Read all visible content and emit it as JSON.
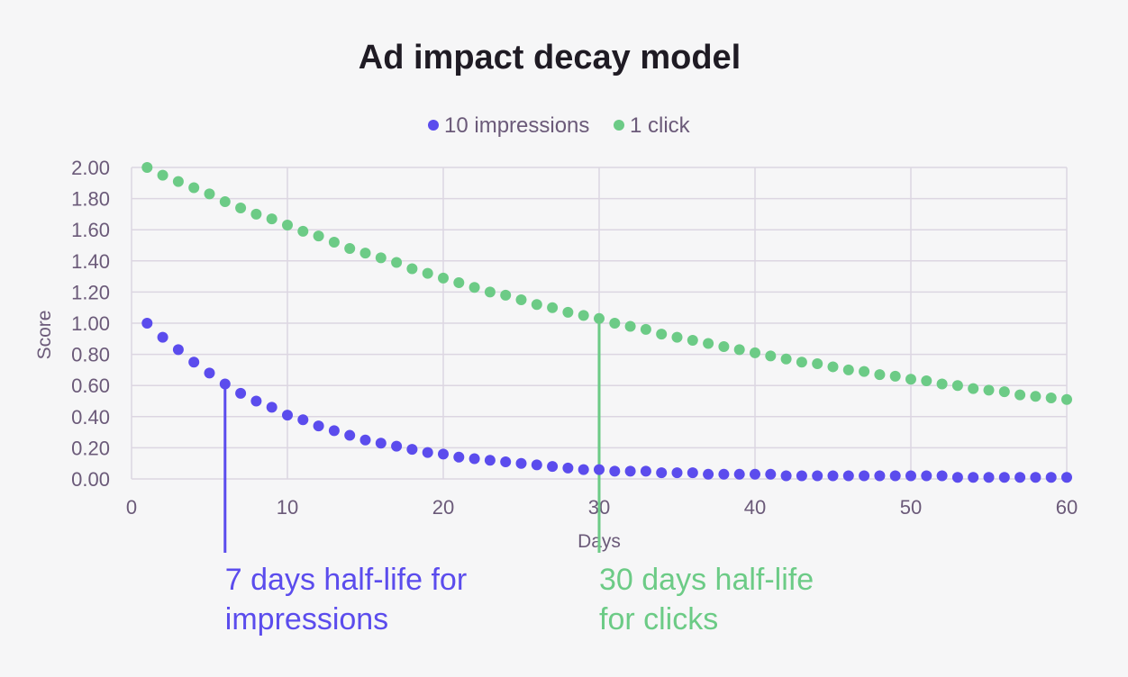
{
  "chart_data": {
    "type": "scatter",
    "title": "Ad impact decay model",
    "xlabel": "Days",
    "ylabel": "Score",
    "xlim": [
      0,
      60
    ],
    "ylim": [
      0,
      2
    ],
    "xticks": [
      "0",
      "10",
      "20",
      "30",
      "40",
      "50",
      "60"
    ],
    "yticks": [
      "0.00",
      "0.20",
      "0.40",
      "0.60",
      "0.80",
      "1.00",
      "1.20",
      "1.40",
      "1.60",
      "1.80",
      "2.00"
    ],
    "grid": true,
    "legend_position": "top-center",
    "series": [
      {
        "name": "10 impressions",
        "color": "#5b4ced",
        "x": [
          1,
          2,
          3,
          4,
          5,
          6,
          7,
          8,
          9,
          10,
          11,
          12,
          13,
          14,
          15,
          16,
          17,
          18,
          19,
          20,
          21,
          22,
          23,
          24,
          25,
          26,
          27,
          28,
          29,
          30,
          31,
          32,
          33,
          34,
          35,
          36,
          37,
          38,
          39,
          40,
          41,
          42,
          43,
          44,
          45,
          46,
          47,
          48,
          49,
          50,
          51,
          52,
          53,
          54,
          55,
          56,
          57,
          58,
          59,
          60
        ],
        "y": [
          1.0,
          0.91,
          0.83,
          0.75,
          0.68,
          0.61,
          0.55,
          0.5,
          0.46,
          0.41,
          0.38,
          0.34,
          0.31,
          0.28,
          0.25,
          0.23,
          0.21,
          0.19,
          0.17,
          0.16,
          0.14,
          0.13,
          0.12,
          0.11,
          0.1,
          0.09,
          0.08,
          0.07,
          0.06,
          0.06,
          0.05,
          0.05,
          0.05,
          0.04,
          0.04,
          0.04,
          0.03,
          0.03,
          0.03,
          0.03,
          0.03,
          0.02,
          0.02,
          0.02,
          0.02,
          0.02,
          0.02,
          0.02,
          0.02,
          0.02,
          0.02,
          0.02,
          0.01,
          0.01,
          0.01,
          0.01,
          0.01,
          0.01,
          0.01,
          0.01
        ]
      },
      {
        "name": "1 click",
        "color": "#6ccb86",
        "x": [
          1,
          2,
          3,
          4,
          5,
          6,
          7,
          8,
          9,
          10,
          11,
          12,
          13,
          14,
          15,
          16,
          17,
          18,
          19,
          20,
          21,
          22,
          23,
          24,
          25,
          26,
          27,
          28,
          29,
          30,
          31,
          32,
          33,
          34,
          35,
          36,
          37,
          38,
          39,
          40,
          41,
          42,
          43,
          44,
          45,
          46,
          47,
          48,
          49,
          50,
          51,
          52,
          53,
          54,
          55,
          56,
          57,
          58,
          59,
          60
        ],
        "y": [
          2.0,
          1.95,
          1.91,
          1.87,
          1.83,
          1.78,
          1.74,
          1.7,
          1.67,
          1.63,
          1.59,
          1.56,
          1.52,
          1.48,
          1.45,
          1.42,
          1.39,
          1.35,
          1.32,
          1.29,
          1.26,
          1.23,
          1.2,
          1.18,
          1.15,
          1.12,
          1.1,
          1.07,
          1.05,
          1.03,
          1.0,
          0.98,
          0.96,
          0.93,
          0.91,
          0.89,
          0.87,
          0.85,
          0.83,
          0.81,
          0.79,
          0.77,
          0.75,
          0.74,
          0.72,
          0.7,
          0.69,
          0.67,
          0.66,
          0.64,
          0.63,
          0.61,
          0.6,
          0.58,
          0.57,
          0.56,
          0.54,
          0.53,
          0.52,
          0.51
        ]
      }
    ],
    "annotations": [
      {
        "text_lines": [
          "7 days half-life for",
          "impressions"
        ],
        "x": 6,
        "y": 0.61,
        "color": "#5b4ced"
      },
      {
        "text_lines": [
          "30 days half-life",
          "for clicks"
        ],
        "x": 30,
        "y": 1.03,
        "color": "#6ccb86"
      }
    ]
  }
}
